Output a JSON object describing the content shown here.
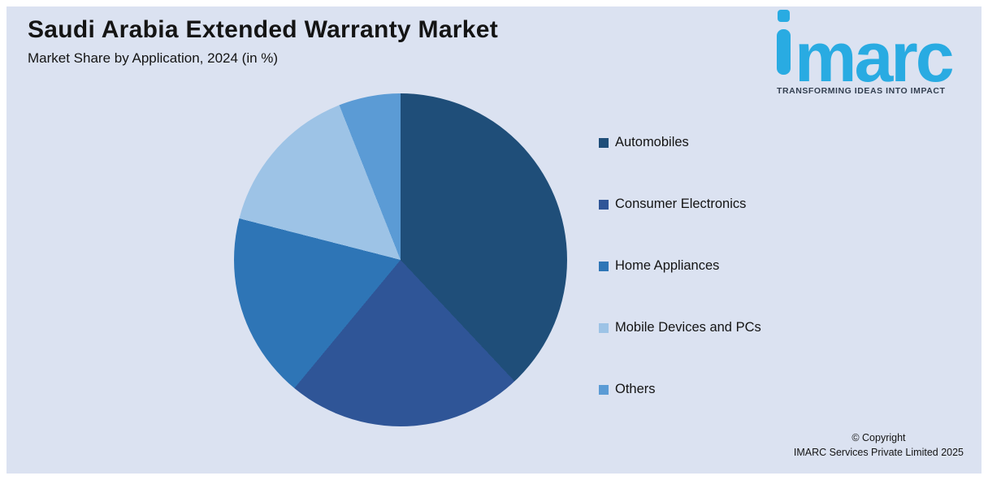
{
  "header": {
    "title": "Saudi Arabia Extended Warranty Market",
    "subtitle": "Market Share by Application, 2024 (in %)"
  },
  "logo": {
    "text_rest": "marc",
    "tagline": "TRANSFORMING IDEAS INTO IMPACT",
    "brand_color": "#29ABE2"
  },
  "chart_data": {
    "type": "pie",
    "title": "Saudi Arabia Extended Warranty Market",
    "subtitle": "Market Share by Application, 2024 (in %)",
    "unit": "%",
    "start_angle_deg": 0,
    "direction": "clockwise",
    "legend_position": "right",
    "background_color": "#DBE2F1",
    "segments": [
      {
        "label": "Automobiles",
        "value": 38,
        "color": "#1F4E79"
      },
      {
        "label": "Consumer Electronics",
        "value": 23,
        "color": "#2F5597"
      },
      {
        "label": "Home Appliances",
        "value": 18,
        "color": "#2E75B6"
      },
      {
        "label": "Mobile Devices and PCs",
        "value": 15,
        "color": "#9DC3E6"
      },
      {
        "label": "Others",
        "value": 6,
        "color": "#5B9BD5"
      }
    ]
  },
  "footer": {
    "copyright_line1": "© Copyright",
    "copyright_line2": "IMARC Services Private Limited 2025"
  }
}
